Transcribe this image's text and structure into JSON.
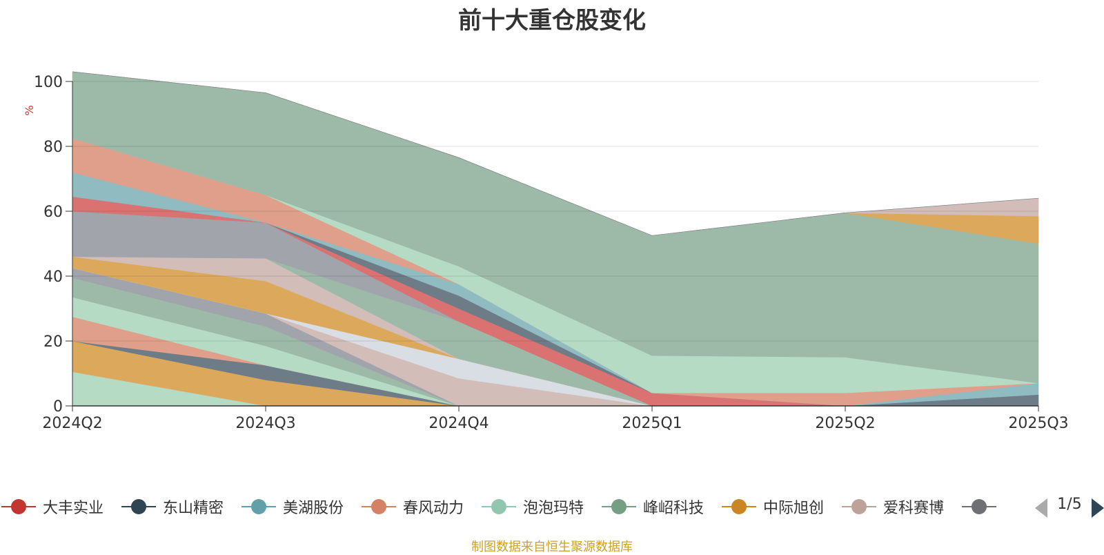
{
  "title": "前十大重仓股变化",
  "source_note": "制图数据来自恒生聚源数据库",
  "pager": {
    "text": "1/5"
  },
  "chart_data": {
    "type": "area",
    "stacked": true,
    "title": "前十大重仓股变化",
    "ylabel": "%",
    "ylim": [
      0,
      100
    ],
    "yticks": [
      0,
      20,
      40,
      60,
      80,
      100
    ],
    "grid": true,
    "legend_position": "bottom",
    "categories": [
      "2024Q2",
      "2024Q3",
      "2024Q4",
      "2025Q1",
      "2025Q2",
      "2025Q3"
    ],
    "series": [
      {
        "name": "",
        "color": "#b5dbc5",
        "values": [
          10.5,
          0,
          0,
          0,
          0,
          0
        ]
      },
      {
        "name": "",
        "color": "#dca95c",
        "values": [
          9.5,
          8,
          0,
          0,
          0,
          0
        ]
      },
      {
        "name": "",
        "color": "#6e7c88",
        "values": [
          0,
          4.5,
          0,
          0,
          0,
          0
        ]
      },
      {
        "name": "",
        "color": "#e09f8a",
        "values": [
          7.5,
          0,
          0,
          0,
          0,
          0
        ]
      },
      {
        "name": "",
        "color": "#b5dbc5",
        "values": [
          6,
          6,
          0,
          0,
          0,
          0
        ]
      },
      {
        "name": "",
        "color": "#9dbaa8",
        "values": [
          6,
          6,
          0,
          0,
          0,
          0
        ]
      },
      {
        "name": "",
        "color": "#a1a4ab",
        "values": [
          3,
          4,
          0,
          0,
          0,
          0
        ]
      },
      {
        "name": "",
        "color": "#d2bdb8",
        "values": [
          0,
          0,
          8.5,
          0,
          0,
          0
        ]
      },
      {
        "name": "",
        "color": "#d9dde4",
        "values": [
          0,
          0,
          6,
          0,
          0,
          0
        ]
      },
      {
        "name": "",
        "color": "#dca95c",
        "values": [
          3.5,
          10,
          0,
          0,
          0,
          0
        ]
      },
      {
        "name": "",
        "color": "#d2bdb8",
        "values": [
          0,
          7,
          0,
          0,
          0,
          0
        ]
      },
      {
        "name": "",
        "color": "#9dbaa8",
        "values": [
          0,
          0,
          11.5,
          0,
          0,
          0
        ]
      },
      {
        "name": "",
        "color": "#a1a4ab",
        "values": [
          14,
          11,
          0,
          0,
          0,
          0
        ]
      },
      {
        "name": "大丰实业",
        "color": "#db7272",
        "values": [
          4.5,
          0,
          4,
          4,
          0,
          0
        ]
      },
      {
        "name": "东山精密",
        "color": "#6e7c88",
        "values": [
          0,
          0,
          4,
          0,
          0,
          3.5
        ]
      },
      {
        "name": "美湖股份",
        "color": "#8fbbc1",
        "values": [
          7.5,
          0,
          3.5,
          0,
          0,
          3.5
        ]
      },
      {
        "name": "春风动力",
        "color": "#e09f8a",
        "values": [
          10.5,
          8.5,
          0,
          0,
          4,
          0
        ]
      },
      {
        "name": "泡泡玛特",
        "color": "#b5dbc5",
        "values": [
          0,
          0,
          5.5,
          11.5,
          11,
          0
        ]
      },
      {
        "name": "峰岹科技",
        "color": "#9dbaa8",
        "values": [
          20.5,
          31.5,
          33.5,
          37,
          44.5,
          43
        ]
      },
      {
        "name": "中际旭创",
        "color": "#dca95c",
        "values": [
          0,
          0,
          0,
          0,
          0,
          8.5
        ]
      },
      {
        "name": "爱科赛博",
        "color": "#d2bdb8",
        "values": [
          0,
          0,
          0,
          0,
          0,
          5.5
        ]
      },
      {
        "name": "",
        "color": "#6e7c88",
        "values": [
          0,
          0,
          0,
          0,
          0,
          0
        ]
      }
    ]
  },
  "legend": [
    {
      "name": "大丰实业",
      "color": "#c23531"
    },
    {
      "name": "东山精密",
      "color": "#2f4554"
    },
    {
      "name": "美湖股份",
      "color": "#61a0a8"
    },
    {
      "name": "春风动力",
      "color": "#d48265"
    },
    {
      "name": "泡泡玛特",
      "color": "#91c7ae"
    },
    {
      "name": "峰岹科技",
      "color": "#749f83"
    },
    {
      "name": "中际旭创",
      "color": "#ca8622"
    },
    {
      "name": "爱科赛博",
      "color": "#bda29a"
    },
    {
      "name": "",
      "color": "#6e7074"
    }
  ]
}
